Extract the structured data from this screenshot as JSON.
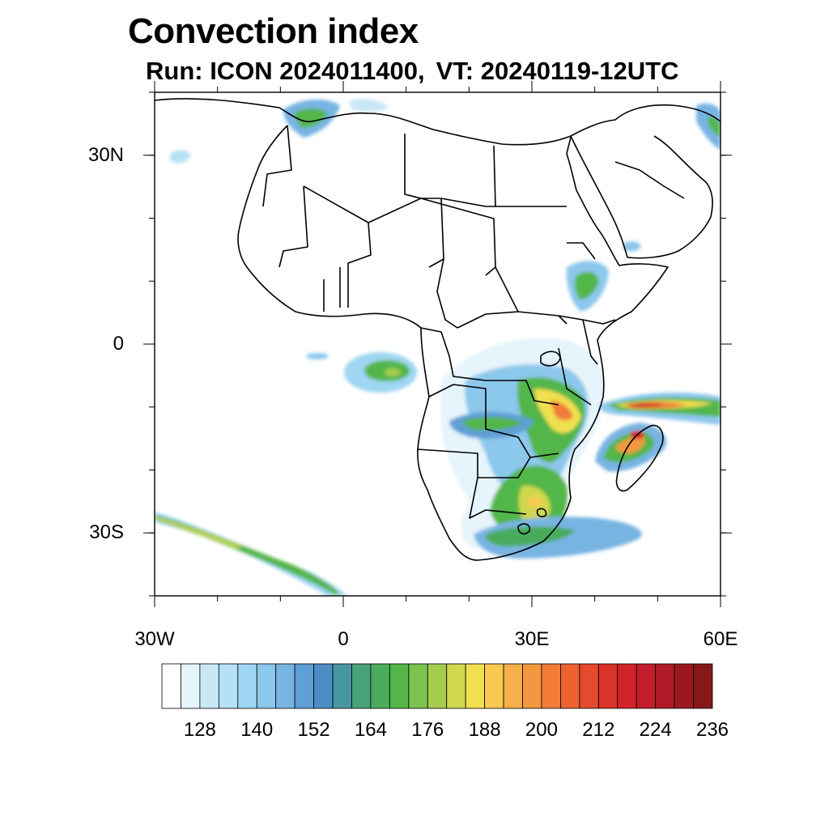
{
  "title": "Convection index",
  "subtitle": {
    "run": "Run: ICON 2024011400,",
    "vt": "VT: 20240119-12UTC"
  },
  "axes": {
    "lon_range": [
      -30,
      60
    ],
    "lat_range": [
      -40,
      40
    ],
    "lat_ticks": [
      {
        "value": 30,
        "label": "30N"
      },
      {
        "value": 0,
        "label": "0"
      },
      {
        "value": -30,
        "label": "30S"
      }
    ],
    "lon_ticks": [
      {
        "value": -30,
        "label": "30W"
      },
      {
        "value": 0,
        "label": "0"
      },
      {
        "value": 30,
        "label": "30E"
      },
      {
        "value": 60,
        "label": "60E"
      }
    ]
  },
  "colorbar": {
    "levels": [
      122,
      126,
      130,
      134,
      138,
      142,
      146,
      150,
      154,
      158,
      162,
      166,
      170,
      174,
      178,
      182,
      186,
      190,
      194,
      198,
      202,
      206,
      210,
      214,
      218,
      222,
      226,
      230,
      234,
      238
    ],
    "colors": [
      "#ffffff",
      "#e6f4fb",
      "#c9e8f6",
      "#b5e0f5",
      "#9fd6f2",
      "#8cc7ec",
      "#78b4e2",
      "#5e9fd6",
      "#4d8dc6",
      "#4896a0",
      "#48a27a",
      "#4aac5c",
      "#52b648",
      "#7cc24e",
      "#a6cc4e",
      "#cfd84e",
      "#f0e050",
      "#f8c850",
      "#f5b04a",
      "#f39840",
      "#f07c38",
      "#ec6230",
      "#e44a2c",
      "#dc3228",
      "#d22428",
      "#c41c2a",
      "#b01a28",
      "#9c1820",
      "#861818"
    ],
    "labels": [
      "128",
      "140",
      "152",
      "164",
      "176",
      "188",
      "200",
      "212",
      "224",
      "236"
    ]
  }
}
